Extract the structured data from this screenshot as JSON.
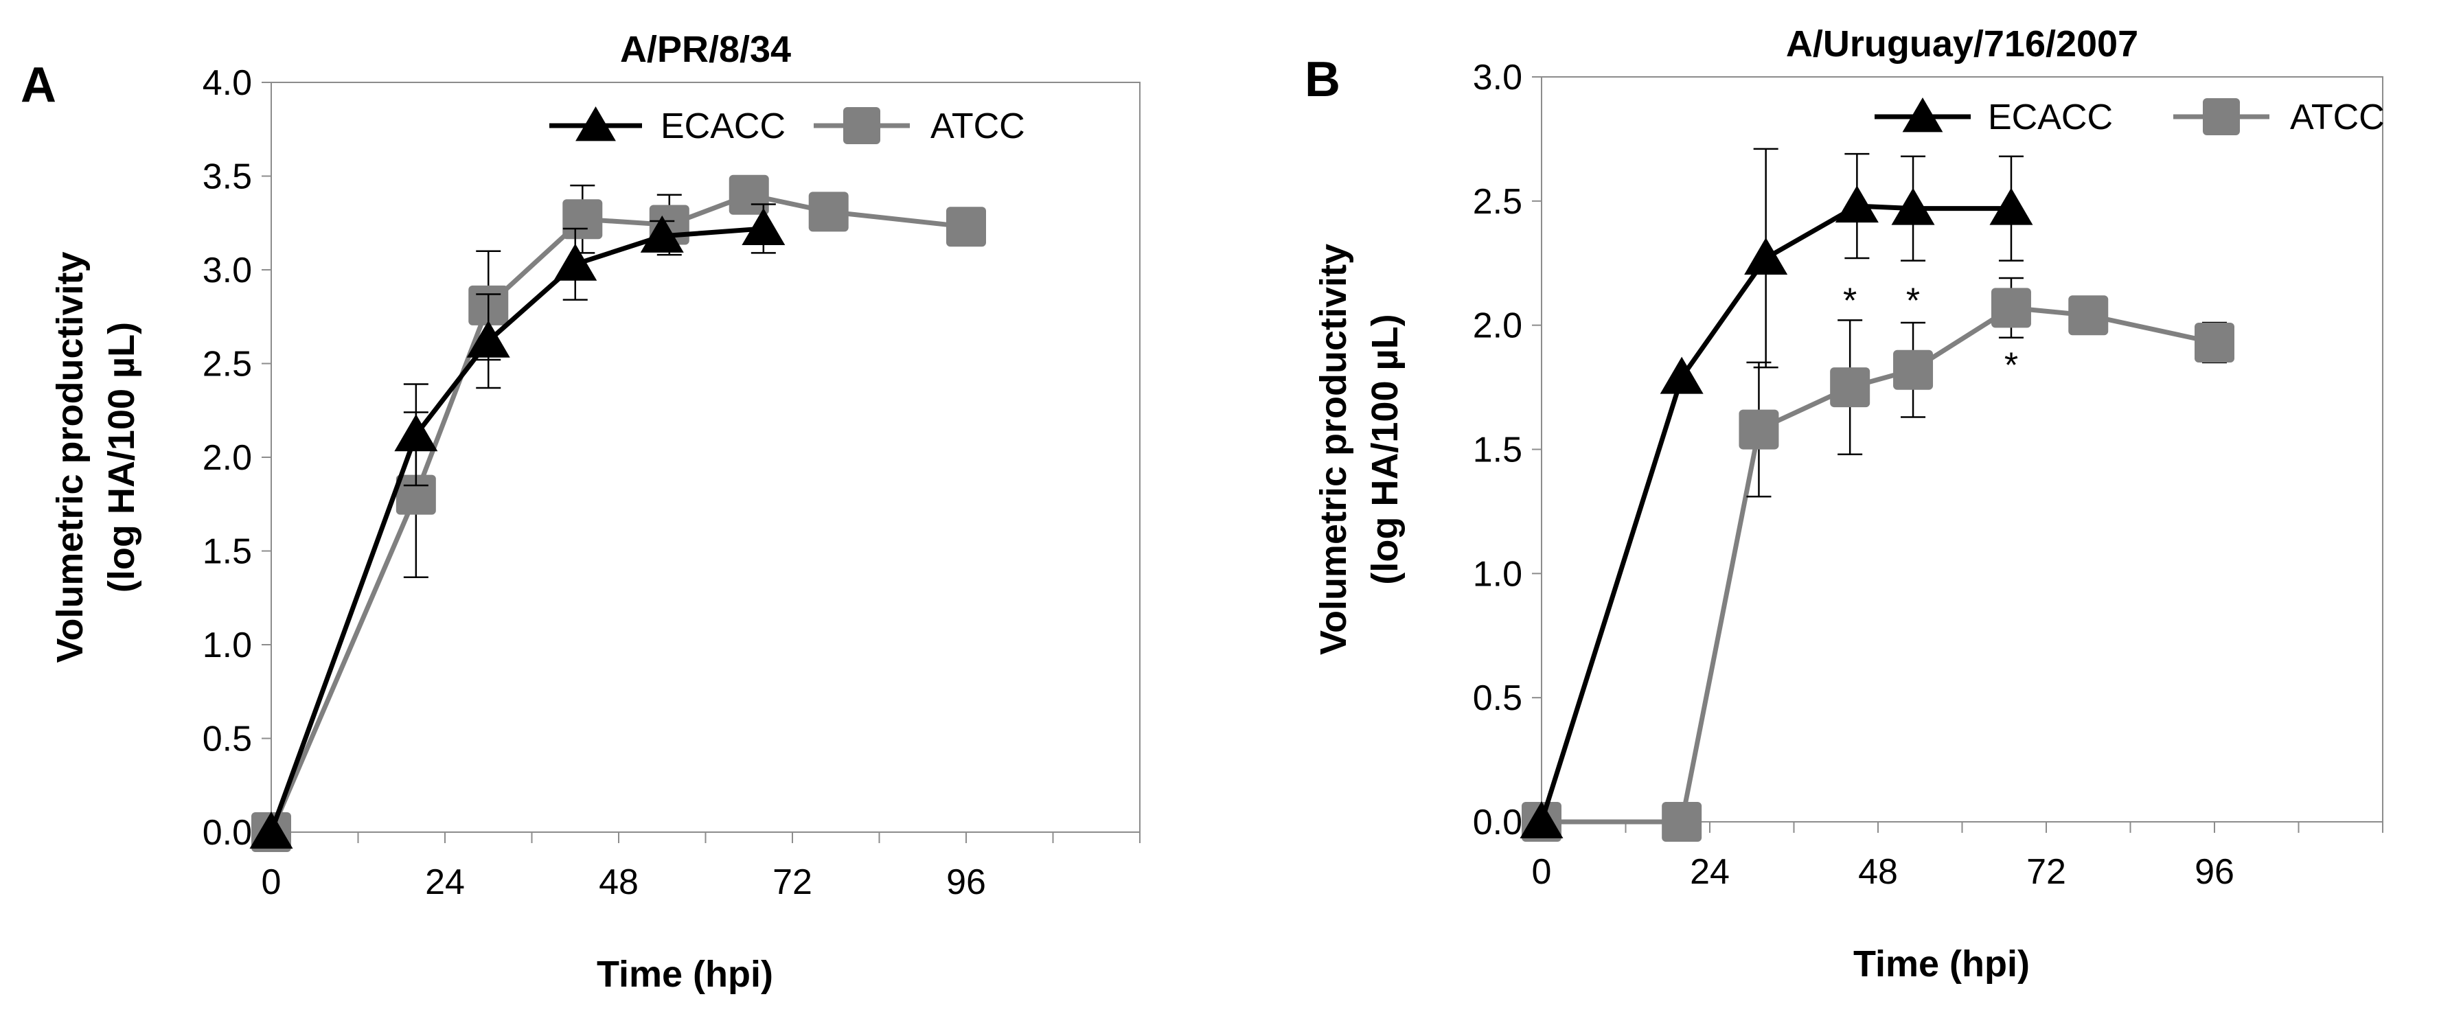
{
  "chart_data": [
    {
      "panel_label": "A",
      "type": "line",
      "title": "A/PR/8/34",
      "xlabel": "Time (hpi)",
      "ylabel_line1": "Volumetric productivity",
      "ylabel_line2": "(log HA/100 µL)",
      "xlim": [
        0,
        120
      ],
      "ylim": [
        0,
        4
      ],
      "xticks": [
        0,
        24,
        48,
        72,
        96
      ],
      "yticks": [
        "0.0",
        "0.5",
        "1.0",
        "1.5",
        "2.0",
        "2.5",
        "3.0",
        "3.5",
        "4.0"
      ],
      "series": [
        {
          "name": "ECACC",
          "color": "#000000",
          "marker": "triangle",
          "x": [
            0,
            20,
            30,
            42,
            54,
            68
          ],
          "y": [
            0,
            2.12,
            2.62,
            3.03,
            3.18,
            3.22
          ],
          "err": [
            0,
            0.27,
            0.25,
            0.19,
            0.08,
            0.13
          ]
        },
        {
          "name": "ATCC",
          "color": "#808080",
          "marker": "square",
          "x": [
            0,
            20,
            30,
            43,
            55,
            66,
            77,
            96
          ],
          "y": [
            0,
            1.8,
            2.81,
            3.27,
            3.24,
            3.4,
            3.31,
            3.23
          ],
          "err": [
            0,
            0.44,
            0.29,
            0.18,
            0.16,
            0.04,
            0.04,
            0.03
          ]
        }
      ],
      "annotations": []
    },
    {
      "panel_label": "B",
      "type": "line",
      "title": "A/Uruguay/716/2007",
      "xlabel": "Time (hpi)",
      "ylabel_line1": "Volumetric productivity",
      "ylabel_line2": "(log HA/100 µL)",
      "xlim": [
        0,
        120
      ],
      "ylim": [
        0,
        3
      ],
      "xticks": [
        0,
        24,
        48,
        72,
        96
      ],
      "yticks": [
        "0.0",
        "0.5",
        "1.0",
        "1.5",
        "2.0",
        "2.5",
        "3.0"
      ],
      "series": [
        {
          "name": "ECACC",
          "color": "#000000",
          "marker": "triangle",
          "x": [
            0,
            20,
            32,
            45,
            53,
            67
          ],
          "y": [
            0,
            1.79,
            2.27,
            2.48,
            2.47,
            2.47
          ],
          "err": [
            0,
            0,
            0.44,
            0.21,
            0.21,
            0.21
          ]
        },
        {
          "name": "ATCC",
          "color": "#808080",
          "marker": "square",
          "x": [
            0,
            20,
            31,
            44,
            53,
            67,
            78,
            96
          ],
          "y": [
            0,
            0,
            1.58,
            1.75,
            1.82,
            2.07,
            2.04,
            1.93
          ],
          "err": [
            0,
            0,
            0.27,
            0.27,
            0.19,
            0.12,
            0.03,
            0.08
          ]
        }
      ],
      "annotations": [
        {
          "text": "*",
          "x": 44,
          "y": 2.1
        },
        {
          "text": "*",
          "x": 53,
          "y": 2.1
        },
        {
          "text": "*",
          "x": 67,
          "y": 1.84
        }
      ]
    }
  ]
}
